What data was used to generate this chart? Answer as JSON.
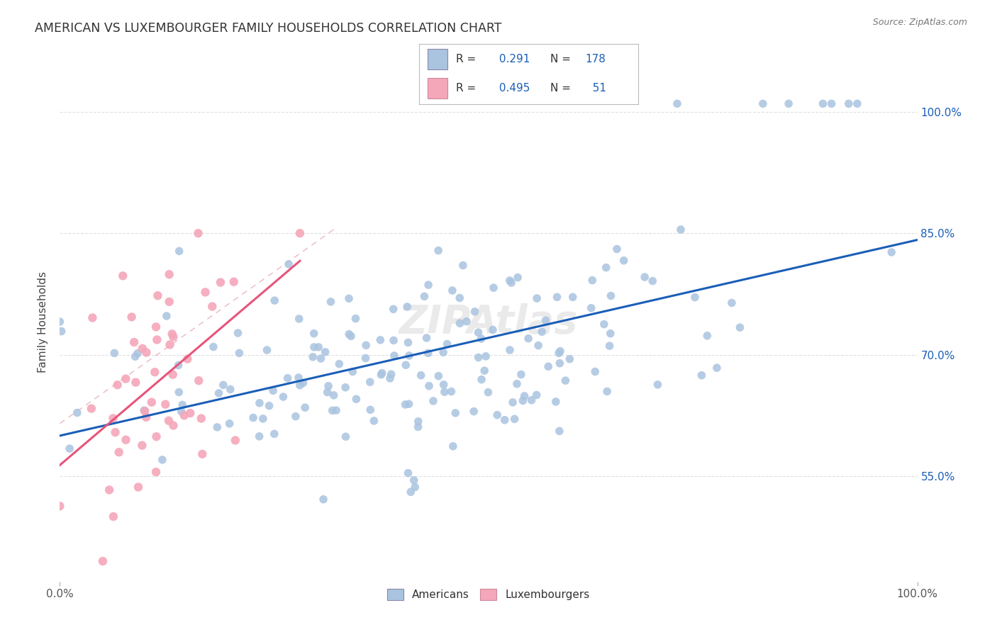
{
  "title": "AMERICAN VS LUXEMBOURGER FAMILY HOUSEHOLDS CORRELATION CHART",
  "source": "Source: ZipAtlas.com",
  "ylabel": "Family Households",
  "ytick_labels": [
    "55.0%",
    "70.0%",
    "85.0%",
    "100.0%"
  ],
  "ytick_values": [
    0.55,
    0.7,
    0.85,
    1.0
  ],
  "xlim": [
    0.0,
    1.0
  ],
  "ylim": [
    0.42,
    1.06
  ],
  "american_color": "#aac4e0",
  "luxembourger_color": "#f4a7b9",
  "american_line_color": "#1a5eb8",
  "luxembourger_line_color": "#e8547a",
  "diagonal_color": "#e8b4bc",
  "grid_color": "#cccccc",
  "background_color": "#ffffff",
  "title_color": "#333333",
  "source_color": "#777777",
  "american_R": 0.291,
  "american_N": 178,
  "luxembourger_R": 0.495,
  "luxembourger_N": 51,
  "seed": 12345
}
